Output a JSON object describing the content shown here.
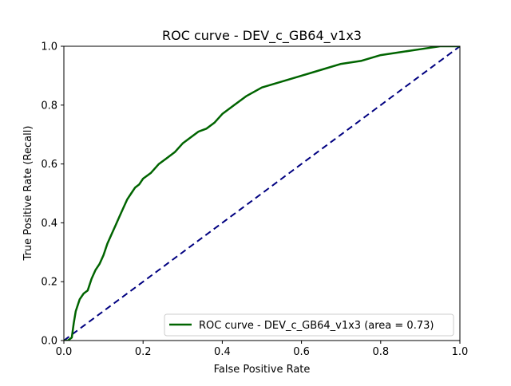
{
  "chart_data": {
    "type": "line",
    "title": "ROC curve - DEV_c_GB64_v1x3",
    "xlabel": "False Positive Rate",
    "ylabel": "True Positive Rate (Recall)",
    "xlim": [
      0.0,
      1.0
    ],
    "ylim": [
      0.0,
      1.0
    ],
    "x_ticks": [
      "0.0",
      "0.2",
      "0.4",
      "0.6",
      "0.8",
      "1.0"
    ],
    "y_ticks": [
      "0.0",
      "0.2",
      "0.4",
      "0.6",
      "0.8",
      "1.0"
    ],
    "grid": false,
    "legend_position": "lower right",
    "series": [
      {
        "name": "ROC curve - DEV_c_GB64_v1x3 (area = 0.73)",
        "color": "#006400",
        "style": "solid",
        "x": [
          0.0,
          0.01,
          0.02,
          0.025,
          0.03,
          0.04,
          0.05,
          0.06,
          0.07,
          0.08,
          0.09,
          0.1,
          0.11,
          0.12,
          0.13,
          0.14,
          0.15,
          0.16,
          0.17,
          0.18,
          0.19,
          0.2,
          0.22,
          0.24,
          0.26,
          0.28,
          0.3,
          0.32,
          0.34,
          0.36,
          0.38,
          0.4,
          0.43,
          0.46,
          0.5,
          0.55,
          0.6,
          0.65,
          0.7,
          0.75,
          0.8,
          0.85,
          0.9,
          0.95,
          1.0
        ],
        "y": [
          0.0,
          0.0,
          0.01,
          0.06,
          0.1,
          0.14,
          0.16,
          0.17,
          0.21,
          0.24,
          0.26,
          0.29,
          0.33,
          0.36,
          0.39,
          0.42,
          0.45,
          0.48,
          0.5,
          0.52,
          0.53,
          0.55,
          0.57,
          0.6,
          0.62,
          0.64,
          0.67,
          0.69,
          0.71,
          0.72,
          0.74,
          0.77,
          0.8,
          0.83,
          0.86,
          0.88,
          0.9,
          0.92,
          0.94,
          0.95,
          0.97,
          0.98,
          0.99,
          1.0,
          1.0
        ]
      },
      {
        "color": "#000080",
        "style": "dashed",
        "x": [
          0.0,
          1.0
        ],
        "y": [
          0.0,
          1.0
        ]
      }
    ]
  }
}
